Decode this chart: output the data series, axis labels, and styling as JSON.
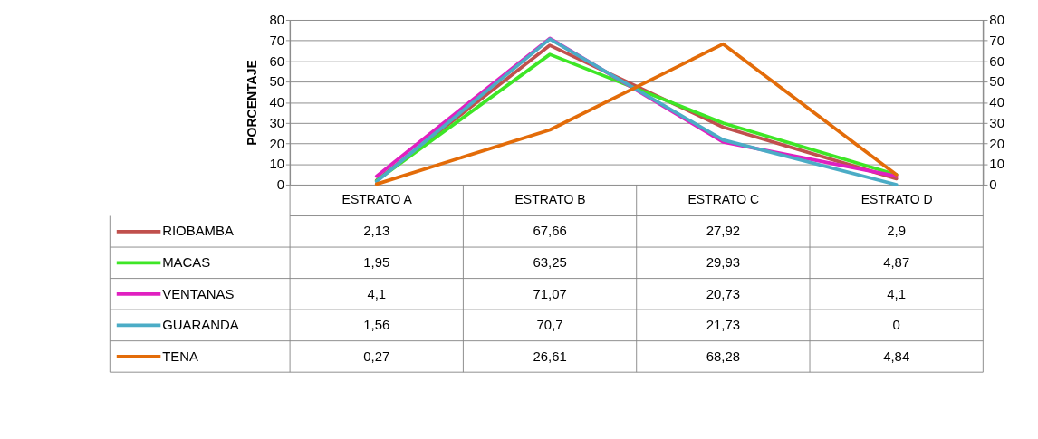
{
  "chart_data": {
    "type": "line",
    "ylabel": "PORCENTAJE",
    "categories": [
      "ESTRATO A",
      "ESTRATO B",
      "ESTRATO C",
      "ESTRATO D"
    ],
    "series": [
      {
        "name": "RIOBAMBA",
        "color": "#c0504d",
        "values": [
          2.13,
          67.66,
          27.92,
          2.9
        ],
        "value_labels": [
          "2,13",
          "67,66",
          "27,92",
          "2,9"
        ]
      },
      {
        "name": "MACAS",
        "color": "#3ee626",
        "values": [
          1.95,
          63.25,
          29.93,
          4.87
        ],
        "value_labels": [
          "1,95",
          "63,25",
          "29,93",
          "4,87"
        ]
      },
      {
        "name": "VENTANAS",
        "color": "#e020c0",
        "values": [
          4.1,
          71.07,
          20.73,
          4.1
        ],
        "value_labels": [
          "4,1",
          "71,07",
          "20,73",
          "4,1"
        ]
      },
      {
        "name": "GUARANDA",
        "color": "#4bacc6",
        "values": [
          1.56,
          70.7,
          21.73,
          0
        ],
        "value_labels": [
          "1,56",
          "70,7",
          "21,73",
          "0"
        ]
      },
      {
        "name": "TENA",
        "color": "#e36c09",
        "values": [
          0.27,
          26.61,
          68.28,
          4.84
        ],
        "value_labels": [
          "0,27",
          "26,61",
          "68,28",
          "4,84"
        ]
      }
    ],
    "ylim": [
      0,
      80
    ],
    "yticks": [
      0,
      10,
      20,
      30,
      40,
      50,
      60,
      70,
      80
    ],
    "y2lim": [
      0,
      80
    ],
    "y2ticks": [
      0,
      10,
      20,
      30,
      40,
      50,
      60,
      70,
      80
    ],
    "grid": "y",
    "legend": "bottom",
    "line_style": "solid",
    "marker": "none"
  }
}
